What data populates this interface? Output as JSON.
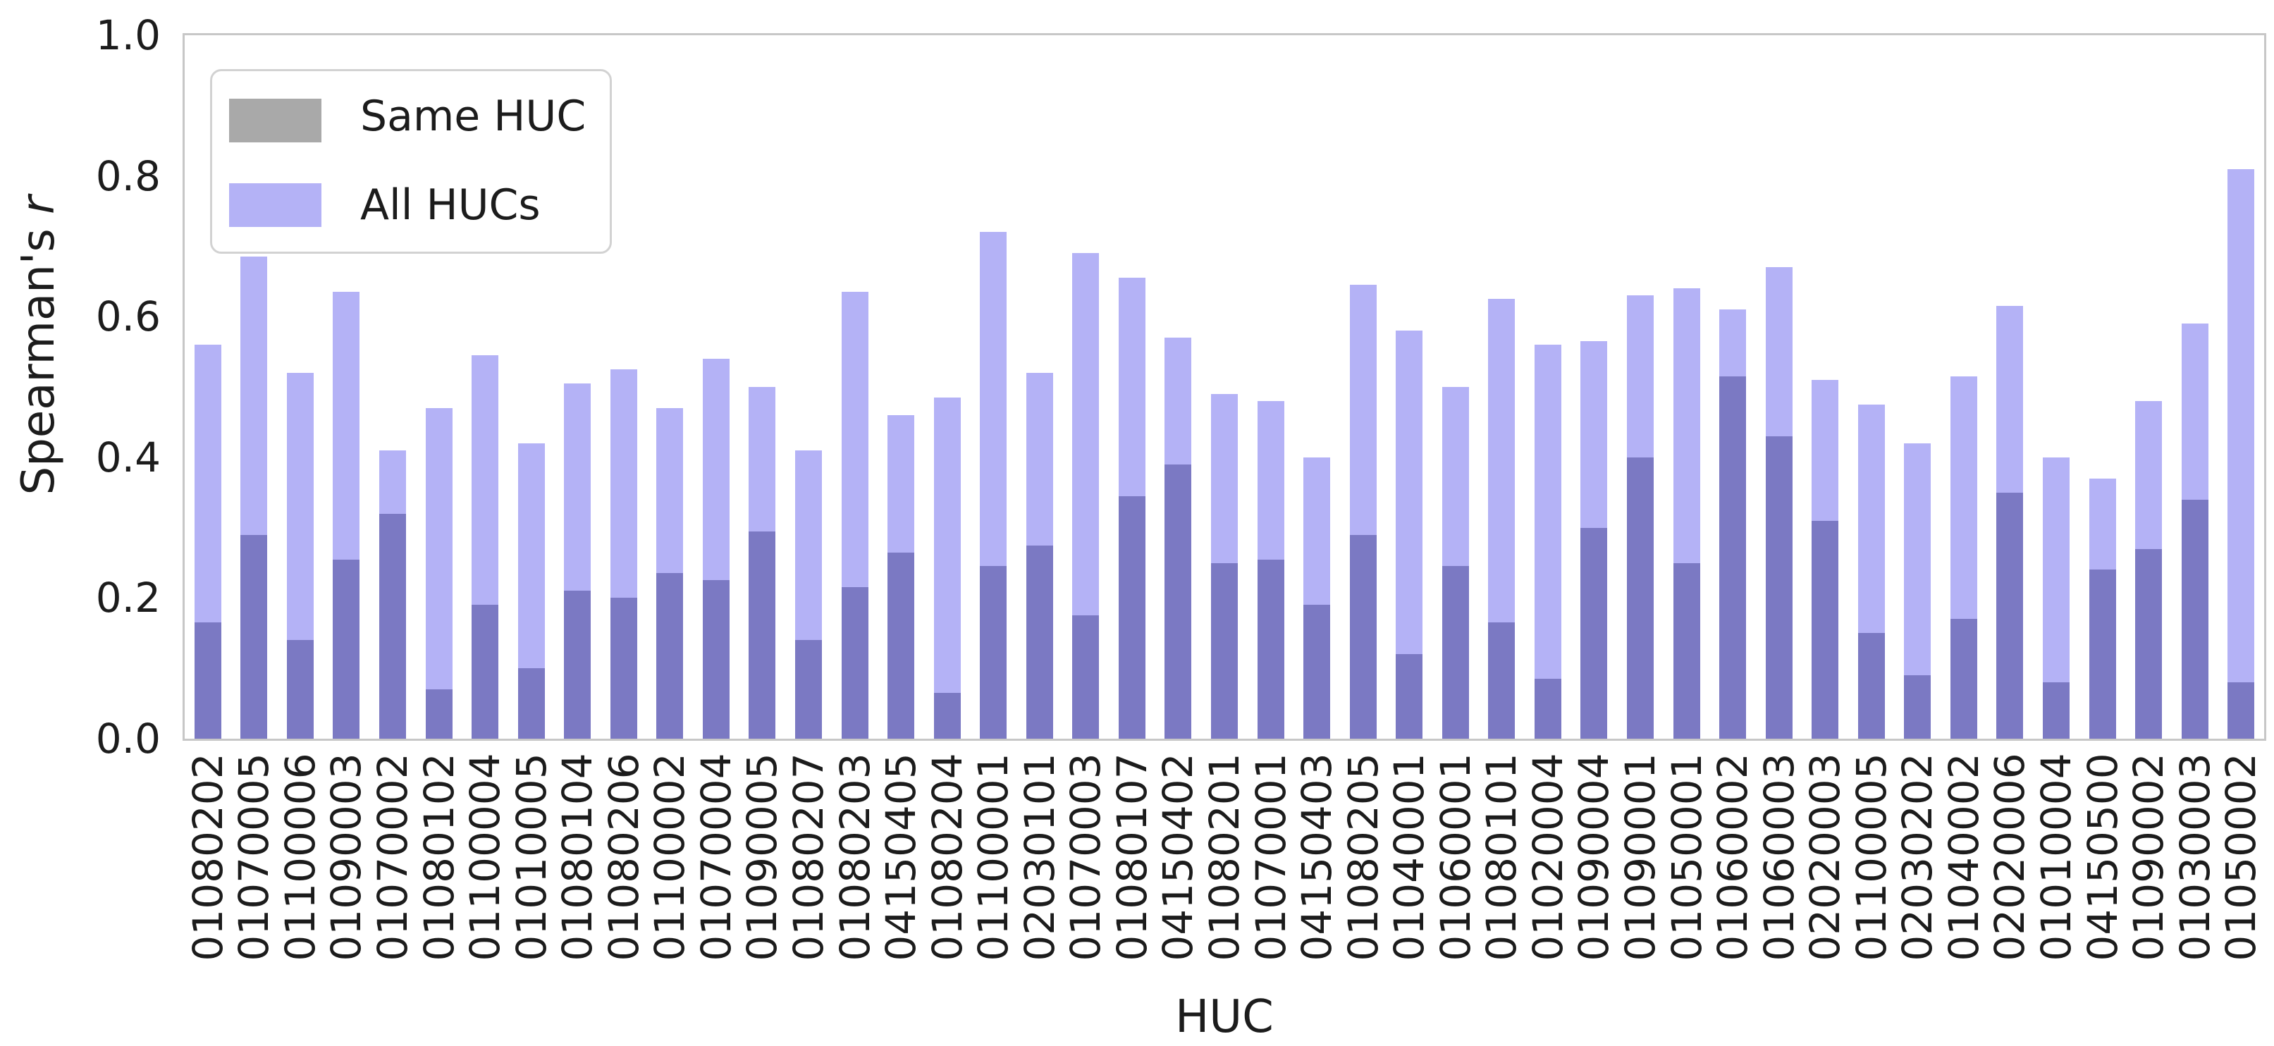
{
  "chart_data": {
    "type": "bar",
    "title": "",
    "xlabel": "HUC",
    "ylabel": "Spearman's r",
    "ylabel_parts": [
      "Spearman's ",
      "r"
    ],
    "ylim": [
      0.0,
      1.0
    ],
    "yticks": [
      0.0,
      0.2,
      0.4,
      0.6,
      0.8,
      1.0
    ],
    "grid": false,
    "legend_position": "upper left",
    "bar_style": "overlaid (Same HUC bar drawn over translucent All HUCs bar at same x)",
    "categories": [
      "01080202",
      "01070005",
      "01100006",
      "01090003",
      "01070002",
      "01080102",
      "01100004",
      "01010005",
      "01080104",
      "01080206",
      "01100002",
      "01070004",
      "01090005",
      "01080207",
      "01080203",
      "04150405",
      "01080204",
      "01100001",
      "02030101",
      "01070003",
      "01080107",
      "04150402",
      "01080201",
      "01070001",
      "04150403",
      "01080205",
      "01040001",
      "01060001",
      "01080101",
      "01020004",
      "01090004",
      "01090001",
      "01050001",
      "01060002",
      "01060003",
      "02020003",
      "01100005",
      "02030202",
      "01040002",
      "02020006",
      "01010004",
      "04150500",
      "01090002",
      "01030003",
      "01050002"
    ],
    "series": [
      {
        "name": "Same HUC",
        "legend_color": "#a9a9a9",
        "rendered_color_in_plot": "#7b79c3",
        "values": [
          0.165,
          0.29,
          0.14,
          0.255,
          0.32,
          0.07,
          0.19,
          0.1,
          0.21,
          0.2,
          0.235,
          0.225,
          0.295,
          0.14,
          0.215,
          0.265,
          0.065,
          0.245,
          0.275,
          0.175,
          0.345,
          0.39,
          0.25,
          0.255,
          0.19,
          0.29,
          0.12,
          0.245,
          0.165,
          0.085,
          0.3,
          0.4,
          0.25,
          0.515,
          0.43,
          0.31,
          0.15,
          0.09,
          0.17,
          0.35,
          0.08,
          0.24,
          0.27,
          0.34,
          0.08
        ]
      },
      {
        "name": "All HUCs",
        "legend_color": "#b4b2f6",
        "rendered_color_in_plot": "#b4b2f6",
        "values": [
          0.56,
          0.685,
          0.52,
          0.635,
          0.41,
          0.47,
          0.545,
          0.42,
          0.505,
          0.525,
          0.47,
          0.54,
          0.5,
          0.41,
          0.635,
          0.46,
          0.485,
          0.72,
          0.52,
          0.69,
          0.655,
          0.57,
          0.49,
          0.48,
          0.4,
          0.645,
          0.58,
          0.5,
          0.625,
          0.56,
          0.565,
          0.63,
          0.64,
          0.61,
          0.67,
          0.51,
          0.475,
          0.42,
          0.515,
          0.615,
          0.4,
          0.37,
          0.48,
          0.59,
          0.81
        ]
      }
    ]
  },
  "colors": {
    "background": "#ffffff",
    "frame": "#c7c7c7",
    "text": "#1c1c1c",
    "legend_border": "#d2d2d2"
  }
}
